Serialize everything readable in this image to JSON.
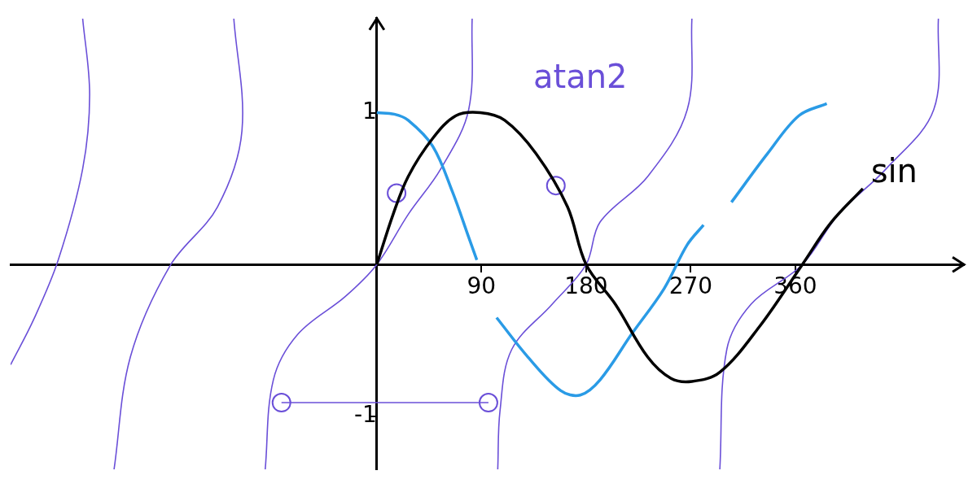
{
  "chart_data": {
    "type": "line",
    "xlim": [
      -315,
      505
    ],
    "ylim": [
      -1.35,
      1.62
    ],
    "xticks": [
      90,
      180,
      270,
      360
    ],
    "yticks": [
      -1,
      1
    ],
    "grid": false,
    "annotations": [
      {
        "text": "sin",
        "x": 445,
        "y": 0.6,
        "color": "#000000"
      },
      {
        "text": "atan2",
        "x": 175,
        "y": 1.22,
        "color": "#6a4fd8"
      }
    ],
    "series": [
      {
        "color": "#000000",
        "marker": "none",
        "line_style": "solid",
        "x": [
          0,
          14,
          27,
          48,
          68,
          89,
          110,
          137,
          164,
          180,
          205,
          233,
          253,
          271,
          295,
          329,
          366,
          390,
          418
        ],
        "values": [
          0,
          0.33,
          0.58,
          0.83,
          0.98,
          1.0,
          0.95,
          0.73,
          0.38,
          0,
          -0.26,
          -0.61,
          -0.75,
          -0.77,
          -0.71,
          -0.41,
          0,
          0.27,
          0.5
        ]
      },
      {
        "color": "#2a9be6",
        "marker": "none",
        "line_style": "solid",
        "x": [
          0,
          15,
          27,
          48,
          65,
          79,
          86,
          95,
          103,
          130,
          158,
          175,
          192,
          219,
          247,
          267,
          281,
          286,
          305,
          336,
          363,
          387
        ],
        "values": [
          1.0,
          0.99,
          0.95,
          0.78,
          0.48,
          0.18,
          0.03,
          null,
          -0.35,
          -0.61,
          -0.83,
          -0.86,
          -0.76,
          -0.46,
          -0.16,
          0.13,
          0.26,
          null,
          0.41,
          0.73,
          0.98,
          1.06
        ]
      },
      {
        "color": "#6a4fd8",
        "marker": "none",
        "line_style": "solid",
        "x": [
          -253,
          -247,
          -253,
          -274,
          -295,
          -315
        ],
        "values": [
          1.62,
          1.12,
          0.63,
          0.03,
          -0.36,
          -0.66
        ]
      },
      {
        "color": "#6a4fd8",
        "marker": "none",
        "line_style": "solid",
        "x": [
          -123,
          -116,
          -137,
          -178,
          -212,
          -226
        ],
        "values": [
          1.62,
          0.88,
          0.38,
          -0.01,
          -0.61,
          -1.35
        ]
      },
      {
        "color": "#6a4fd8",
        "marker": "none",
        "line_style": "solid",
        "x": [
          82,
          79,
          55,
          27,
          0,
          -27,
          -68,
          -89,
          -96
        ],
        "values": [
          1.62,
          1.02,
          0.63,
          0.33,
          0,
          -0.21,
          -0.46,
          -0.76,
          -1.35
        ]
      },
      {
        "color": "#6a4fd8",
        "marker": "none",
        "line_style": "solid",
        "x": [
          271,
          267,
          233,
          192,
          180,
          151,
          116,
          106,
          104
        ],
        "values": [
          1.62,
          1.02,
          0.58,
          0.28,
          0,
          -0.26,
          -0.56,
          -0.96,
          -1.35
        ]
      },
      {
        "color": "#6a4fd8",
        "marker": "none",
        "line_style": "solid",
        "x": [
          483,
          479,
          438,
          397,
          366,
          322,
          301,
          295
        ],
        "values": [
          1.62,
          1.02,
          0.63,
          0.33,
          0,
          -0.26,
          -0.56,
          -1.35
        ]
      },
      {
        "color": "#6a4fd8",
        "marker": "circle",
        "line_style": "solid",
        "x": [
          -82,
          96
        ],
        "values": [
          -0.91,
          -0.91
        ]
      },
      {
        "color": "#6a4fd8",
        "marker": "circle",
        "line_style": "none",
        "x": [
          17,
          154
        ],
        "values": [
          0.47,
          0.52
        ]
      }
    ]
  }
}
